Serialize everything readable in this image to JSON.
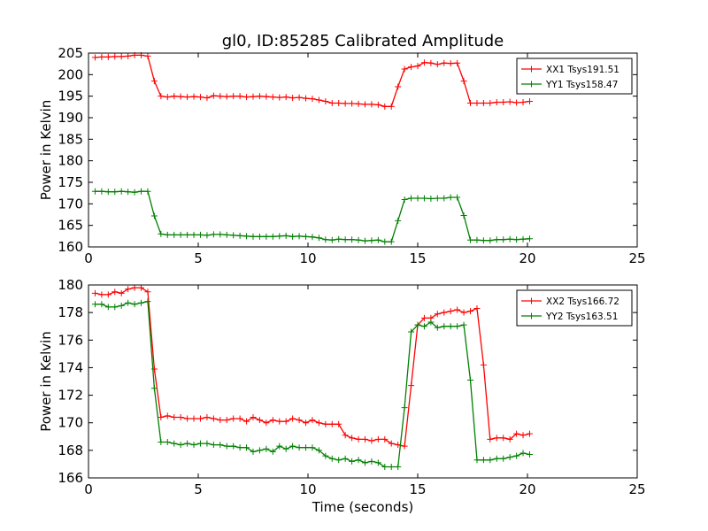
{
  "title": "gl0, ID:85285 Calibrated Amplitude",
  "chart_data": [
    {
      "type": "line",
      "ylabel": "Power in Kelvin",
      "xlabel": "",
      "xlim": [
        0,
        25
      ],
      "ylim": [
        160,
        205
      ],
      "xticks": [
        0,
        5,
        10,
        15,
        20,
        25
      ],
      "yticks": [
        160,
        165,
        170,
        175,
        180,
        185,
        190,
        195,
        200,
        205
      ],
      "legend_position": "top-right",
      "series": [
        {
          "name": "XX1 Tsys191.51",
          "color": "#ff0000",
          "x": [
            0.3,
            0.6,
            0.9,
            1.2,
            1.5,
            1.8,
            2.1,
            2.4,
            2.7,
            3.0,
            3.3,
            3.6,
            3.9,
            4.2,
            4.5,
            4.8,
            5.1,
            5.4,
            5.7,
            6.0,
            6.3,
            6.6,
            6.9,
            7.2,
            7.5,
            7.8,
            8.1,
            8.4,
            8.7,
            9.0,
            9.3,
            9.6,
            9.9,
            10.2,
            10.5,
            10.8,
            11.1,
            11.4,
            11.7,
            12.0,
            12.3,
            12.6,
            12.9,
            13.2,
            13.5,
            13.8,
            14.1,
            14.4,
            14.7,
            15.0,
            15.3,
            15.6,
            15.9,
            16.2,
            16.5,
            16.8,
            17.1,
            17.4,
            17.7,
            18.0,
            18.3,
            18.6,
            18.9,
            19.2,
            19.5,
            19.8,
            20.1
          ],
          "y": [
            204.0,
            204.1,
            204.1,
            204.2,
            204.2,
            204.3,
            204.5,
            204.5,
            204.3,
            198.5,
            195.0,
            194.8,
            195.0,
            194.9,
            194.8,
            194.9,
            194.8,
            194.6,
            195.1,
            195.0,
            194.9,
            195.0,
            195.0,
            194.8,
            194.9,
            195.0,
            194.9,
            194.8,
            194.7,
            194.8,
            194.6,
            194.7,
            194.5,
            194.4,
            194.1,
            193.8,
            193.4,
            193.4,
            193.3,
            193.3,
            193.2,
            193.1,
            193.1,
            193.0,
            192.6,
            192.6,
            197.2,
            201.3,
            201.8,
            202.0,
            202.8,
            202.7,
            202.4,
            202.7,
            202.6,
            202.7,
            198.5,
            193.4,
            193.4,
            193.4,
            193.4,
            193.6,
            193.6,
            193.7,
            193.5,
            193.6,
            193.8
          ]
        },
        {
          "name": "YY1 Tsys158.47",
          "color": "#008000",
          "x": [
            0.3,
            0.6,
            0.9,
            1.2,
            1.5,
            1.8,
            2.1,
            2.4,
            2.7,
            3.0,
            3.3,
            3.6,
            3.9,
            4.2,
            4.5,
            4.8,
            5.1,
            5.4,
            5.7,
            6.0,
            6.3,
            6.6,
            6.9,
            7.2,
            7.5,
            7.8,
            8.1,
            8.4,
            8.7,
            9.0,
            9.3,
            9.6,
            9.9,
            10.2,
            10.5,
            10.8,
            11.1,
            11.4,
            11.7,
            12.0,
            12.3,
            12.6,
            12.9,
            13.2,
            13.5,
            13.8,
            14.1,
            14.4,
            14.7,
            15.0,
            15.3,
            15.6,
            15.9,
            16.2,
            16.5,
            16.8,
            17.1,
            17.4,
            17.7,
            18.0,
            18.3,
            18.6,
            18.9,
            19.2,
            19.5,
            19.8,
            20.1
          ],
          "y": [
            172.9,
            172.9,
            172.8,
            172.8,
            172.9,
            172.8,
            172.7,
            172.9,
            172.9,
            167.2,
            163.0,
            162.8,
            162.8,
            162.8,
            162.8,
            162.8,
            162.8,
            162.7,
            162.9,
            162.9,
            162.8,
            162.7,
            162.6,
            162.5,
            162.4,
            162.4,
            162.4,
            162.4,
            162.5,
            162.6,
            162.4,
            162.5,
            162.4,
            162.3,
            162.1,
            161.7,
            161.6,
            161.8,
            161.7,
            161.7,
            161.6,
            161.4,
            161.5,
            161.6,
            161.2,
            161.2,
            166.1,
            171.0,
            171.3,
            171.3,
            171.3,
            171.2,
            171.3,
            171.3,
            171.5,
            171.5,
            167.3,
            161.6,
            161.6,
            161.5,
            161.5,
            161.7,
            161.7,
            161.8,
            161.7,
            161.8,
            161.9
          ]
        }
      ]
    },
    {
      "type": "line",
      "ylabel": "Power in Kelvin",
      "xlabel": "Time (seconds)",
      "xlim": [
        0,
        25
      ],
      "ylim": [
        166,
        180
      ],
      "xticks": [
        0,
        5,
        10,
        15,
        20,
        25
      ],
      "yticks": [
        166,
        168,
        170,
        172,
        174,
        176,
        178,
        180
      ],
      "legend_position": "top-right",
      "series": [
        {
          "name": "XX2 Tsys166.72",
          "color": "#ff0000",
          "x": [
            0.3,
            0.6,
            0.9,
            1.2,
            1.5,
            1.8,
            2.1,
            2.4,
            2.7,
            3.0,
            3.3,
            3.6,
            3.9,
            4.2,
            4.5,
            4.8,
            5.1,
            5.4,
            5.7,
            6.0,
            6.3,
            6.6,
            6.9,
            7.2,
            7.5,
            7.8,
            8.1,
            8.4,
            8.7,
            9.0,
            9.3,
            9.6,
            9.9,
            10.2,
            10.5,
            10.8,
            11.1,
            11.4,
            11.7,
            12.0,
            12.3,
            12.6,
            12.9,
            13.2,
            13.5,
            13.8,
            14.1,
            14.4,
            14.7,
            15.0,
            15.3,
            15.6,
            15.9,
            16.2,
            16.5,
            16.8,
            17.1,
            17.4,
            17.7,
            18.0,
            18.3,
            18.6,
            18.9,
            19.2,
            19.5,
            19.8,
            20.1
          ],
          "y": [
            179.4,
            179.3,
            179.3,
            179.5,
            179.4,
            179.7,
            179.8,
            179.8,
            179.5,
            173.9,
            170.4,
            170.5,
            170.4,
            170.4,
            170.3,
            170.3,
            170.3,
            170.4,
            170.3,
            170.2,
            170.2,
            170.3,
            170.3,
            170.1,
            170.4,
            170.2,
            170.0,
            170.2,
            170.1,
            170.1,
            170.3,
            170.2,
            170.0,
            170.2,
            170.0,
            169.9,
            169.9,
            169.9,
            169.1,
            168.9,
            168.8,
            168.8,
            168.7,
            168.8,
            168.8,
            168.5,
            168.4,
            168.3,
            172.7,
            177.1,
            177.6,
            177.6,
            177.9,
            178.0,
            178.1,
            178.2,
            178.0,
            178.1,
            178.3,
            174.2,
            168.8,
            168.9,
            168.9,
            168.8,
            169.2,
            169.1,
            169.2
          ]
        },
        {
          "name": "YY2 Tsys163.51",
          "color": "#008000",
          "x": [
            0.3,
            0.6,
            0.9,
            1.2,
            1.5,
            1.8,
            2.1,
            2.4,
            2.7,
            3.0,
            3.3,
            3.6,
            3.9,
            4.2,
            4.5,
            4.8,
            5.1,
            5.4,
            5.7,
            6.0,
            6.3,
            6.6,
            6.9,
            7.2,
            7.5,
            7.8,
            8.1,
            8.4,
            8.7,
            9.0,
            9.3,
            9.6,
            9.9,
            10.2,
            10.5,
            10.8,
            11.1,
            11.4,
            11.7,
            12.0,
            12.3,
            12.6,
            12.9,
            13.2,
            13.5,
            13.8,
            14.1,
            14.4,
            14.7,
            15.0,
            15.3,
            15.6,
            15.9,
            16.2,
            16.5,
            16.8,
            17.1,
            17.4,
            17.7,
            18.0,
            18.3,
            18.6,
            18.9,
            19.2,
            19.5,
            19.8,
            20.1
          ],
          "y": [
            178.6,
            178.6,
            178.4,
            178.4,
            178.5,
            178.7,
            178.6,
            178.7,
            178.8,
            172.5,
            168.6,
            168.6,
            168.5,
            168.4,
            168.5,
            168.4,
            168.5,
            168.5,
            168.4,
            168.4,
            168.3,
            168.3,
            168.2,
            168.2,
            167.9,
            168.0,
            168.1,
            167.9,
            168.3,
            168.1,
            168.3,
            168.2,
            168.2,
            168.2,
            168.0,
            167.6,
            167.4,
            167.3,
            167.4,
            167.2,
            167.3,
            167.1,
            167.2,
            167.1,
            166.8,
            166.8,
            166.8,
            171.1,
            176.6,
            177.1,
            177.0,
            177.3,
            176.9,
            177.0,
            177.0,
            177.0,
            177.1,
            173.1,
            167.3,
            167.3,
            167.3,
            167.4,
            167.4,
            167.5,
            167.6,
            167.8,
            167.7
          ]
        }
      ]
    }
  ]
}
